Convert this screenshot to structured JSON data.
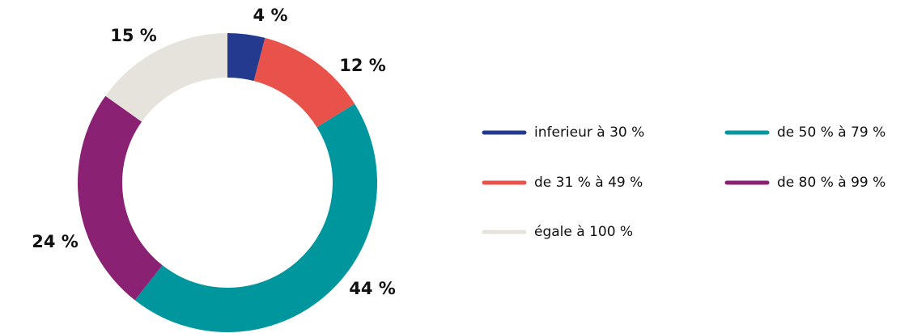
{
  "chart_data": {
    "type": "donut",
    "categories": [
      "inferieur à 30 %",
      "de 31 % à 49 %",
      "de 50 % à 79 %",
      "de 80 % à 99 %",
      "égale à 100 %"
    ],
    "values": [
      4,
      12,
      44,
      24,
      15
    ],
    "value_labels": [
      "4 %",
      "12 %",
      "44 %",
      "24 %",
      "15 %"
    ],
    "colors": [
      "#233a8f",
      "#e9524a",
      "#00969d",
      "#8a2173",
      "#e6e3dc"
    ],
    "legend": "right"
  }
}
